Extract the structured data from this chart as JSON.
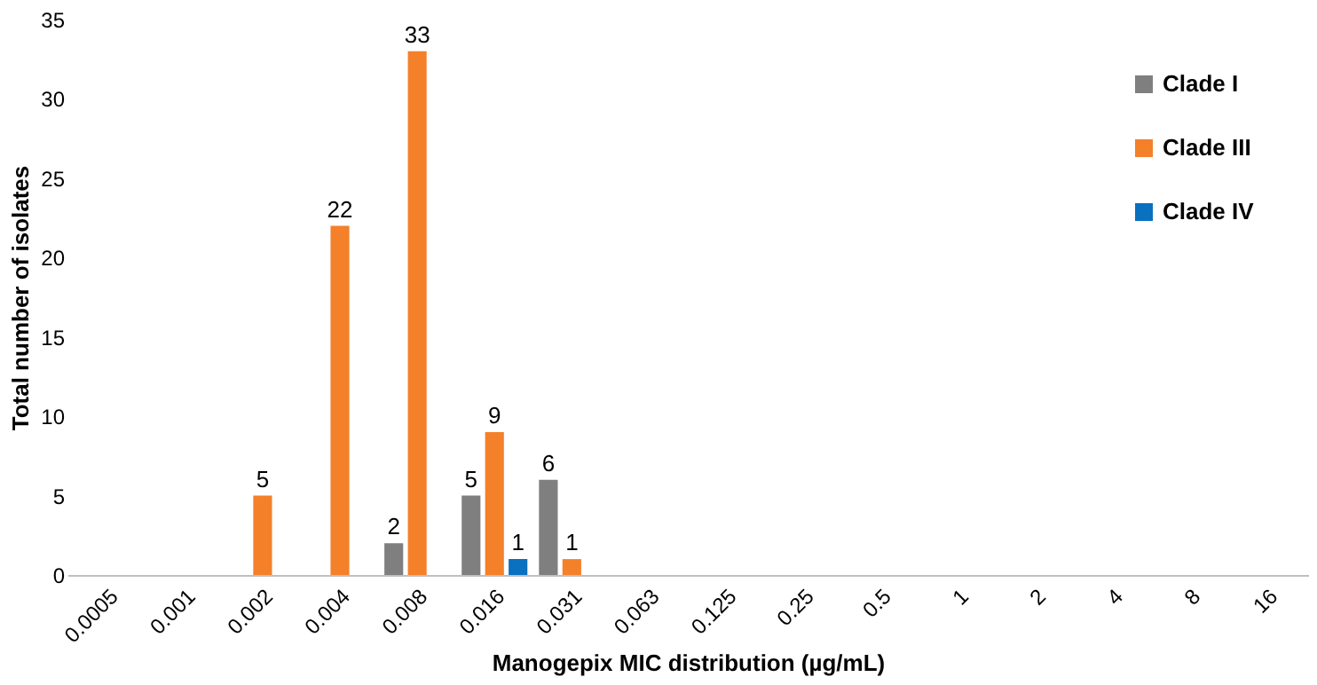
{
  "chart_data": {
    "type": "bar",
    "xlabel": "Manogepix MIC distribution (µg/mL)",
    "ylabel": "Total number of isolates",
    "categories": [
      "0.0005",
      "0.001",
      "0.002",
      "0.004",
      "0.008",
      "0.016",
      "0.031",
      "0.063",
      "0.125",
      "0.25",
      "0.5",
      "1",
      "2",
      "4",
      "8",
      "16"
    ],
    "series": [
      {
        "name": "Clade I",
        "color": "#7f7f7f",
        "values": [
          0,
          0,
          0,
          0,
          2,
          5,
          6,
          0,
          0,
          0,
          0,
          0,
          0,
          0,
          0,
          0
        ],
        "value_labels": [
          null,
          null,
          null,
          null,
          "2",
          "5",
          "6",
          null,
          null,
          null,
          null,
          null,
          null,
          null,
          null,
          null
        ]
      },
      {
        "name": "Clade III",
        "color": "#f4802a",
        "values": [
          0,
          0,
          5,
          22,
          33,
          9,
          1,
          0,
          0,
          0,
          0,
          0,
          0,
          0,
          0,
          0
        ],
        "value_labels": [
          null,
          null,
          "5",
          "22",
          "33",
          "9",
          "1",
          null,
          null,
          null,
          null,
          null,
          null,
          null,
          null,
          null
        ]
      },
      {
        "name": "Clade IV",
        "color": "#0a70c0",
        "values": [
          0,
          0,
          0,
          0,
          0,
          1,
          0,
          0,
          0,
          0,
          0,
          0,
          0,
          0,
          0,
          0
        ],
        "value_labels": [
          null,
          null,
          null,
          null,
          null,
          "1",
          null,
          null,
          null,
          null,
          null,
          null,
          null,
          null,
          null,
          null
        ]
      }
    ],
    "ylim": [
      0,
      35
    ],
    "yticks": [
      0,
      5,
      10,
      15,
      20,
      25,
      30,
      35
    ],
    "grid": false,
    "legend": "top right"
  }
}
